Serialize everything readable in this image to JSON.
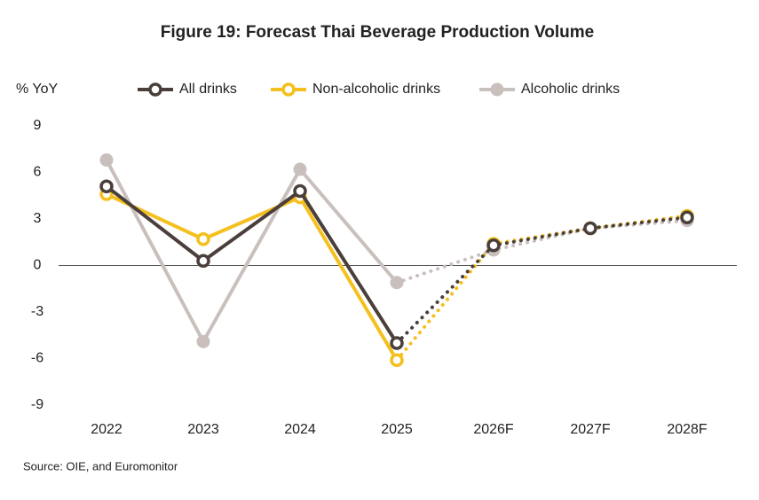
{
  "chart_data": {
    "type": "line",
    "title": "Figure 19: Forecast Thai Beverage Production Volume",
    "y_label": "% YoY",
    "source": "Source: OIE, and Euromonitor",
    "categories": [
      "2022",
      "2023",
      "2024",
      "2025",
      "2026F",
      "2027F",
      "2028F"
    ],
    "dotted_from": 3,
    "series": [
      {
        "name": "All drinks",
        "color": "#4a3f3b",
        "marker": "hollow",
        "values": [
          5.1,
          0.3,
          4.8,
          -5.0,
          1.3,
          2.4,
          3.1
        ]
      },
      {
        "name": "Non-alcoholic drinks",
        "color": "#f5c01d",
        "marker": "hollow",
        "values": [
          4.6,
          1.7,
          4.4,
          -6.1,
          1.4,
          2.4,
          3.2
        ]
      },
      {
        "name": "Alcoholic drinks",
        "color": "#c9c0bd",
        "marker": "filled",
        "values": [
          6.8,
          -4.9,
          6.2,
          -1.1,
          1.0,
          2.4,
          2.9
        ]
      }
    ],
    "ylim": [
      -9,
      9
    ],
    "yticks": [
      9,
      6,
      3,
      0,
      -3,
      -6,
      -9
    ]
  }
}
